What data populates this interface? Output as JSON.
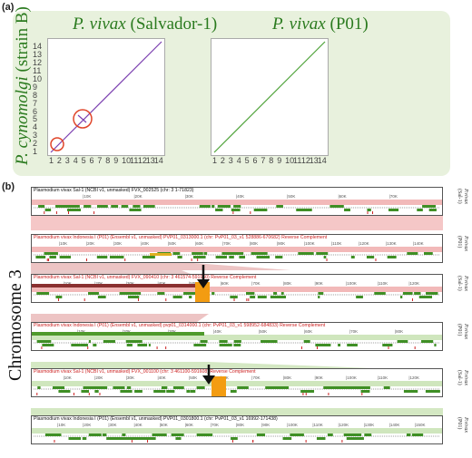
{
  "panel_a": {
    "label": "(a)",
    "plot1_title_species": "P. vivax",
    "plot1_title_strain": "(Salvador-1)",
    "plot2_title_species": "P. vivax",
    "plot2_title_strain": "(P01)",
    "ylabel_species": "P. cynomolgi",
    "ylabel_strain": "(strain B)",
    "x_ticks": [
      "1",
      "2",
      "3",
      "4",
      "5",
      "6",
      "7",
      "8",
      "9",
      "10",
      "11",
      "12",
      "13",
      "14"
    ],
    "y_ticks": [
      "1",
      "2",
      "3",
      "4",
      "5",
      "6",
      "7",
      "8",
      "9",
      "10",
      "11",
      "12",
      "13",
      "14"
    ],
    "x_ticks_plot1": [
      "1",
      "2",
      "3",
      "4",
      "5",
      "6",
      "7",
      "8",
      "9",
      "10",
      "11",
      "12",
      "13",
      "14"
    ],
    "colors": {
      "box": "#e8f1dd",
      "title": "#2a7a1e",
      "diag1": "#7b3fb0",
      "diag2": "#4fa33a",
      "circle": "#e0452a"
    }
  },
  "panel_b": {
    "label": "(b)",
    "chromosome_label": "Chromosome 3",
    "tracks": [
      {
        "header": "Plasmodium vivax Sal-1 (NCBI v1, unmasked) FVX_002525 (chr: 3 1-71823)",
        "side_species": "P.vivax",
        "side_strain": "(Sal-1)",
        "kb": [
          "10K",
          "20K",
          "30K",
          "40K",
          "50K",
          "60K",
          "70K"
        ]
      },
      {
        "header": "Plasmodium vivax Indonesia I (P01) (Ensembl v1, unmasked) PVP01_0313000.1 (chr: PvP01_03_v1 528886-670682) Reverse Complement",
        "side_species": "P.vivax",
        "side_strain": "(P01)",
        "kb": [
          "10K",
          "20K",
          "30K",
          "40K",
          "50K",
          "60K",
          "70K",
          "80K",
          "90K",
          "100K",
          "110K",
          "120K",
          "130K",
          "140K"
        ]
      },
      {
        "header": "Plasmodium vivax Sal-1 (NCBI v1, unmasked) FVX_090410 (chr: 3 461574-591960) Reverse Complement",
        "side_species": "P.vivax",
        "side_strain": "(Sal-1)",
        "kb": [
          "10K",
          "20K",
          "30K",
          "40K",
          "50K",
          "60K",
          "70K",
          "80K",
          "90K",
          "100K",
          "110K",
          "120K"
        ]
      },
      {
        "header": "Plasmodium vivax Indonesia I (P01) (Ensembl v1, unmasked) pvp01_0314000.1 (chr: PvP01_03_v1 598952-684833) Reverse Complement",
        "side_species": "P.vivax",
        "side_strain": "(P01)",
        "kb": [
          "10K",
          "20K",
          "30K",
          "40K",
          "50K",
          "60K",
          "70K",
          "80K"
        ]
      },
      {
        "header": "Plasmodium vivax Sal-1 (NCBI v1, unmasked) FVX_001100 (chr: 3 461100-591608) Reverse Complement",
        "side_species": "P.vivax",
        "side_strain": "(Sal-1)",
        "kb": [
          "10K",
          "20K",
          "30K",
          "40K",
          "50K",
          "60K",
          "70K",
          "80K",
          "90K",
          "100K",
          "110K",
          "120K"
        ]
      },
      {
        "header": "Plasmodium vivax Indonesia I (P01) (Ensembl v1, unmasked) PVP01_0301800.1 (chr: PvP01_03_v1 16992-171438)",
        "side_species": "P.vivax",
        "side_strain": "(P01)",
        "kb": [
          "10K",
          "20K",
          "30K",
          "40K",
          "50K",
          "60K",
          "70K",
          "80K",
          "90K",
          "100K",
          "110K",
          "120K",
          "130K",
          "140K",
          "150K"
        ]
      }
    ],
    "colors": {
      "pink": "#f2b9b9",
      "pinkdark": "#c98080",
      "green": "#cfe6bd",
      "greendark": "#4f9a2c",
      "orange": "#f39c12",
      "gene": "#3f8f25",
      "red": "#cc2222"
    }
  }
}
